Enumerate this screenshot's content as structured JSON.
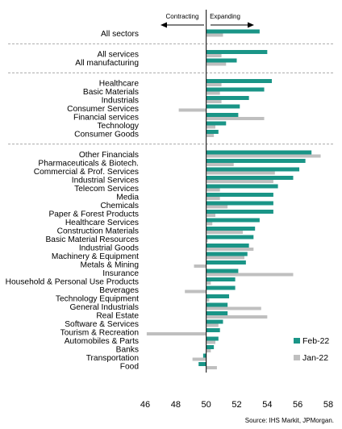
{
  "chart_data": {
    "type": "bar",
    "orientation": "horizontal",
    "title": "",
    "xlabel": "",
    "ylabel": "",
    "xlim": [
      46,
      58
    ],
    "xticks": [
      46,
      48,
      50,
      52,
      54,
      56,
      58
    ],
    "reference_value": 50,
    "annotations": {
      "left": "Contracting",
      "right": "Expanding"
    },
    "source": "Source: IHS Markit, JPMorgan.",
    "legend_position": "right",
    "grid": false,
    "categories": [
      "All sectors",
      "All services",
      "All manufacturing",
      "Healthcare",
      "Basic Materials",
      "Industrials",
      "Consumer Services",
      "Financial services",
      "Technology",
      "Consumer Goods",
      "Other Financials",
      "Pharmaceuticals & Biotech.",
      "Commercial & Prof. Services",
      "Industrial Services",
      "Telecom Services",
      "Media",
      "Chemicals",
      "Paper & Forest Products",
      "Healthcare Services",
      "Construction Materials",
      "Basic Material Resources",
      "Industrial Goods",
      "Machinery & Equipment",
      "Metals & Mining",
      "Insurance",
      "Household & Personal Use Products",
      "Beverages",
      "Technology Equipment",
      "General Industrials",
      "Real Estate",
      "Software & Services",
      "Tourism & Recreation",
      "Automobiles & Parts",
      "Banks",
      "Transportation",
      "Food"
    ],
    "groups": [
      [
        0
      ],
      [
        1,
        2
      ],
      [
        3,
        4,
        5,
        6,
        7,
        8,
        9
      ],
      [
        10,
        11,
        12,
        13,
        14,
        15,
        16,
        17,
        18,
        19,
        20,
        21,
        22,
        23,
        24,
        25,
        26,
        27,
        28,
        29,
        30,
        31,
        32,
        33,
        34,
        35
      ]
    ],
    "series": [
      {
        "name": "Feb-22",
        "color": "#1a9587",
        "values": [
          53.5,
          54.0,
          52.0,
          54.3,
          53.8,
          52.8,
          52.2,
          52.1,
          51.3,
          50.8,
          56.9,
          56.5,
          56.1,
          55.7,
          54.7,
          54.4,
          54.4,
          54.4,
          53.5,
          53.2,
          53.1,
          52.8,
          52.7,
          52.6,
          52.1,
          51.9,
          51.9,
          51.5,
          51.4,
          51.4,
          51.1,
          50.9,
          50.8,
          50.5,
          49.8,
          49.5
        ]
      },
      {
        "name": "Jan-22",
        "color": "#bfbfbf",
        "values": [
          51.1,
          51.0,
          51.3,
          51.0,
          50.9,
          51.0,
          48.2,
          53.8,
          50.6,
          50.5,
          57.5,
          51.8,
          54.5,
          54.4,
          50.9,
          50.9,
          51.4,
          50.6,
          50.4,
          52.4,
          50.1,
          53.1,
          52.5,
          49.2,
          55.7,
          50.3,
          48.6,
          50.2,
          53.6,
          54.0,
          50.8,
          46.1,
          50.6,
          50.3,
          49.1,
          50.7
        ]
      }
    ]
  }
}
